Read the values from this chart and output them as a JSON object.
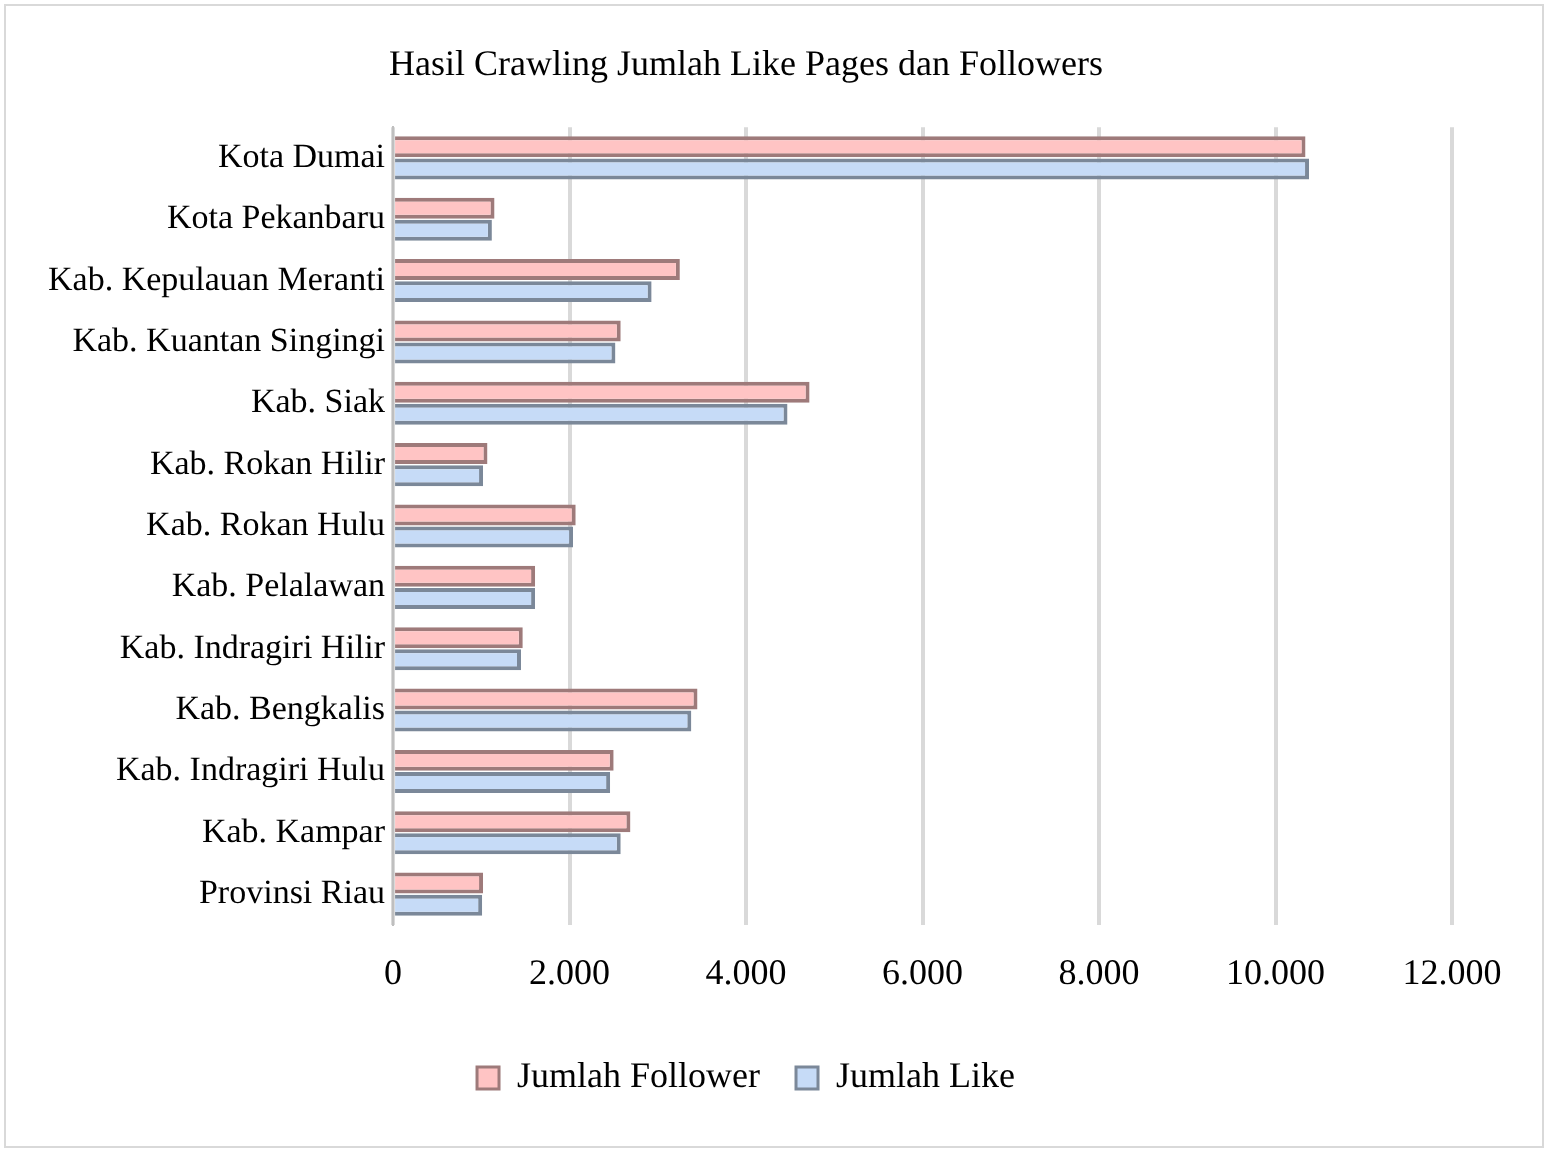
{
  "chart_data": {
    "type": "bar",
    "orientation": "horizontal",
    "title": "Hasil Crawling Jumlah Like Pages dan Followers",
    "categories": [
      "Kota Dumai",
      "Kota Pekanbaru",
      "Kab. Kepulauan Meranti",
      "Kab. Kuantan Singingi",
      "Kab. Siak",
      "Kab. Rokan Hilir",
      "Kab. Rokan Hulu",
      "Kab. Pelalawan",
      "Kab. Indragiri Hilir",
      "Kab. Bengkalis",
      "Kab. Indragiri Hulu",
      "Kab. Kampar",
      "Provinsi Riau"
    ],
    "series": [
      {
        "name": "Jumlah Follower",
        "color": "#ffc4c4",
        "values": [
          10340,
          1150,
          3250,
          2580,
          4720,
          1070,
          2070,
          1610,
          1470,
          3450,
          2500,
          2690,
          1020
        ]
      },
      {
        "name": "Jumlah Like",
        "color": "#c6dbf7",
        "values": [
          10380,
          1120,
          2930,
          2520,
          4470,
          1020,
          2040,
          1610,
          1450,
          3380,
          2460,
          2580,
          1010
        ]
      }
    ],
    "xlim": [
      0,
      12000
    ],
    "xticks": [
      0,
      {
        "value": 2000,
        "label": "2.000"
      },
      {
        "value": 4000,
        "label": "4.000"
      },
      {
        "value": 6000,
        "label": "6.000"
      },
      {
        "value": 8000,
        "label": "8.000"
      },
      {
        "value": 10000,
        "label": "10.000"
      },
      {
        "value": 12000,
        "label": "12.000"
      }
    ],
    "grid": "x",
    "legend": "bottom"
  }
}
